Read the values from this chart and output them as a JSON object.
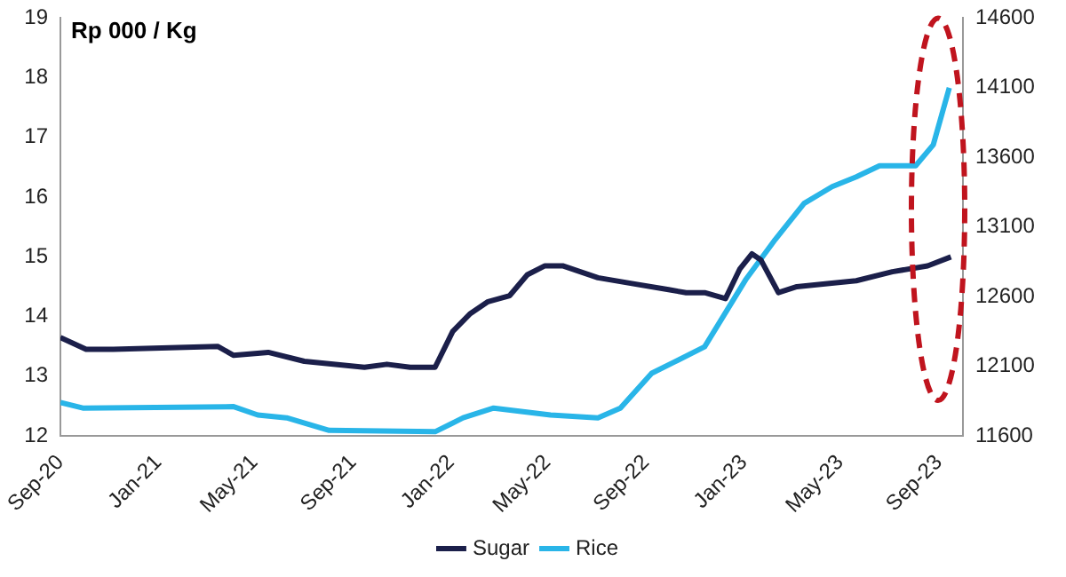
{
  "chart_data": {
    "type": "line",
    "ylabel": "Rp 000 / Kg",
    "ylim": [
      12,
      19
    ],
    "yticks": [
      12,
      13,
      14,
      15,
      16,
      17,
      18,
      19
    ],
    "y2lim": [
      11600,
      14600
    ],
    "y2ticks": [
      11600,
      12100,
      12600,
      13100,
      13600,
      14100,
      14600
    ],
    "xlim": [
      "2020-09",
      "2023-10"
    ],
    "xticks": [
      {
        "value": "2020-09",
        "label": "Sep-20"
      },
      {
        "value": "2021-01",
        "label": "Jan-21"
      },
      {
        "value": "2021-05",
        "label": "May-21"
      },
      {
        "value": "2021-09",
        "label": "Sep-21"
      },
      {
        "value": "2022-01",
        "label": "Jan-22"
      },
      {
        "value": "2022-05",
        "label": "May-22"
      },
      {
        "value": "2022-09",
        "label": "Sep-22"
      },
      {
        "value": "2023-01",
        "label": "Jan-23"
      },
      {
        "value": "2023-05",
        "label": "May-23"
      },
      {
        "value": "2023-09",
        "label": "Sep-23"
      }
    ],
    "grid": false,
    "legend": "bottom",
    "marker": "none",
    "line_style": "solid",
    "series": [
      {
        "name": "Sugar",
        "color": "#1b1f4a",
        "x": [
          "2020-09-01",
          "2020-10-03",
          "2020-11-06",
          "2021-03-16",
          "2021-04-05",
          "2021-05-18",
          "2021-07-02",
          "2021-09-15",
          "2021-10-13",
          "2021-11-11",
          "2021-12-12",
          "2022-01-03",
          "2022-01-25",
          "2022-02-16",
          "2022-03-15",
          "2022-04-06",
          "2022-04-28",
          "2022-05-20",
          "2022-07-03",
          "2022-08-16",
          "2022-09-29",
          "2022-10-21",
          "2022-11-13",
          "2022-12-09",
          "2022-12-27",
          "2023-01-11",
          "2023-01-22",
          "2023-02-13",
          "2023-03-08",
          "2023-04-15",
          "2023-05-21",
          "2023-07-05",
          "2023-08-18",
          "2023-09-16"
        ],
        "values": [
          13.65,
          13.45,
          13.45,
          13.5,
          13.35,
          13.4,
          13.25,
          13.15,
          13.2,
          13.15,
          13.15,
          13.75,
          14.05,
          14.25,
          14.35,
          14.7,
          14.85,
          14.85,
          14.65,
          14.55,
          14.45,
          14.4,
          14.4,
          14.3,
          14.8,
          15.05,
          14.95,
          14.4,
          14.5,
          14.55,
          14.6,
          14.75,
          14.85,
          15.0
        ]
      },
      {
        "name": "Rice",
        "color": "#29b5e8",
        "axis": "y2",
        "x": [
          "2020-09-01",
          "2020-09-29",
          "2021-04-05",
          "2021-05-05",
          "2021-06-10",
          "2021-08-02",
          "2021-12-12",
          "2022-01-16",
          "2022-02-23",
          "2022-05-05",
          "2022-07-03",
          "2022-07-31",
          "2022-09-08",
          "2022-10-06",
          "2022-11-13",
          "2023-01-03",
          "2023-02-09",
          "2023-03-17",
          "2023-04-21",
          "2023-05-21",
          "2023-06-19",
          "2023-08-03",
          "2023-08-25",
          "2023-09-14"
        ],
        "values": [
          11840,
          11800,
          11810,
          11750,
          11730,
          11640,
          11630,
          11730,
          11800,
          11750,
          11730,
          11800,
          12050,
          12130,
          12240,
          12720,
          13010,
          13270,
          13390,
          13460,
          13540,
          13540,
          13690,
          14100
        ]
      }
    ]
  }
}
